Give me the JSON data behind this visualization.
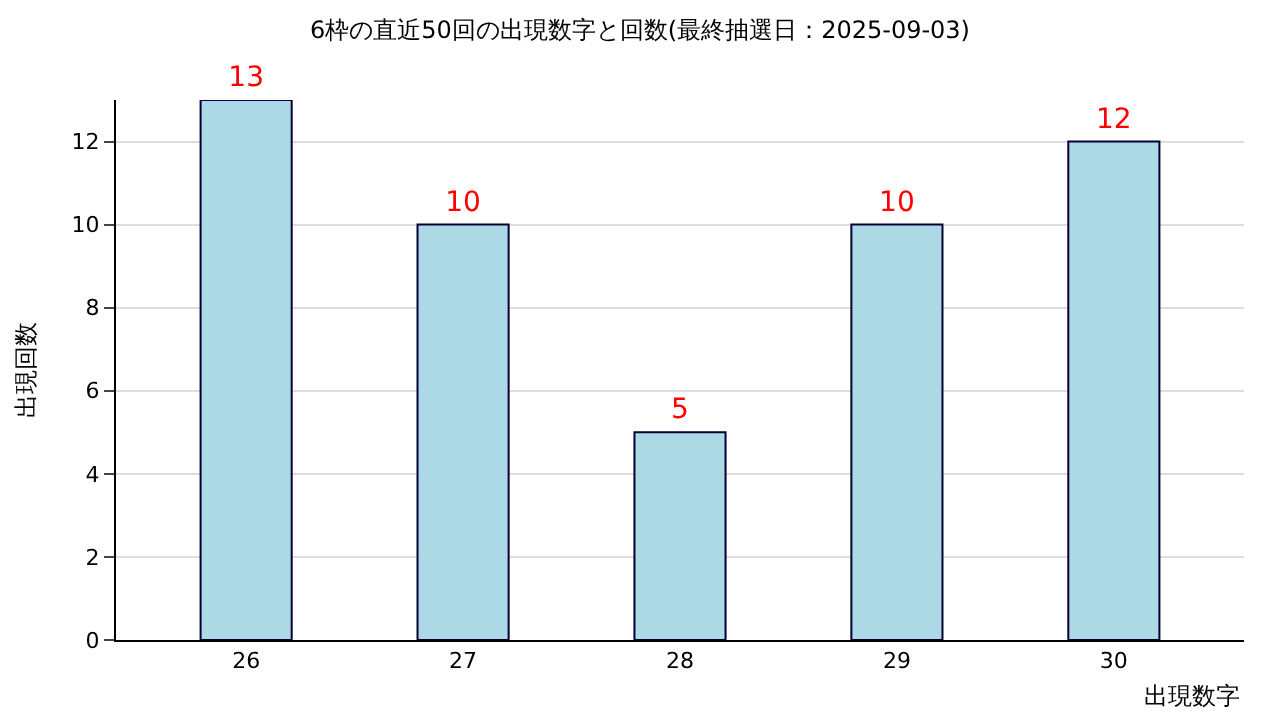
{
  "chart_data": {
    "type": "bar",
    "title": "6枠の直近50回の出現数字と回数(最終抽選日：2025-09-03)",
    "categories": [
      "26",
      "27",
      "28",
      "29",
      "30"
    ],
    "values": [
      13,
      10,
      5,
      10,
      12
    ],
    "color": "#add8e6",
    "xlabel": "出現数字",
    "ylabel": "出現回数",
    "ylim": [
      0,
      13
    ],
    "yticks": [
      0,
      2,
      4,
      6,
      8,
      10,
      12
    ],
    "grid": "y",
    "data_labels": true,
    "legend": false
  }
}
